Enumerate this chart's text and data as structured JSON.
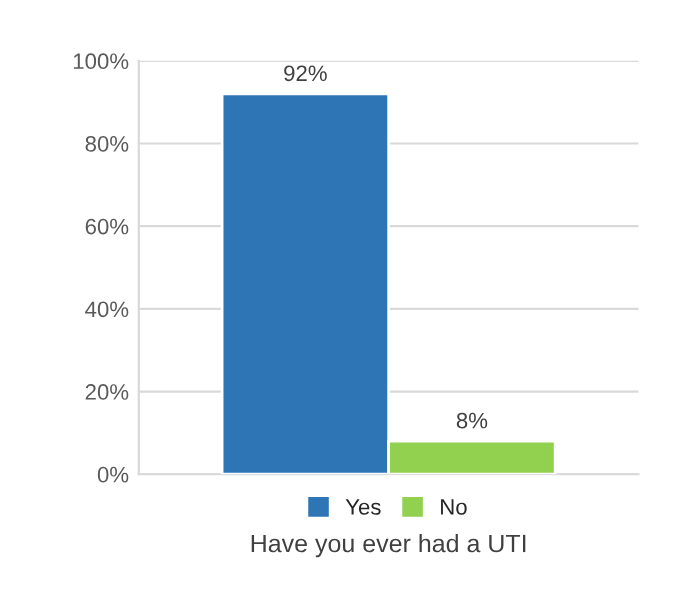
{
  "chart_data": {
    "type": "bar",
    "xlabel": "Have you ever had a UTI",
    "categories": [
      null
    ],
    "series": [
      {
        "name": "Yes",
        "color": "#2e75b6",
        "values": [
          92
        ],
        "value_labels": [
          "92%"
        ]
      },
      {
        "name": "No",
        "color": "#92d050",
        "values": [
          8
        ],
        "value_labels": [
          "8%"
        ]
      }
    ],
    "ylim": [
      0,
      100
    ],
    "yticks": [
      {
        "value": 0,
        "label": "0%"
      },
      {
        "value": 20,
        "label": "20%"
      },
      {
        "value": 40,
        "label": "40%"
      },
      {
        "value": 60,
        "label": "60%"
      },
      {
        "value": 80,
        "label": "80%"
      },
      {
        "value": 100,
        "label": "100%"
      }
    ],
    "grid": "y",
    "legend": "bottom"
  }
}
